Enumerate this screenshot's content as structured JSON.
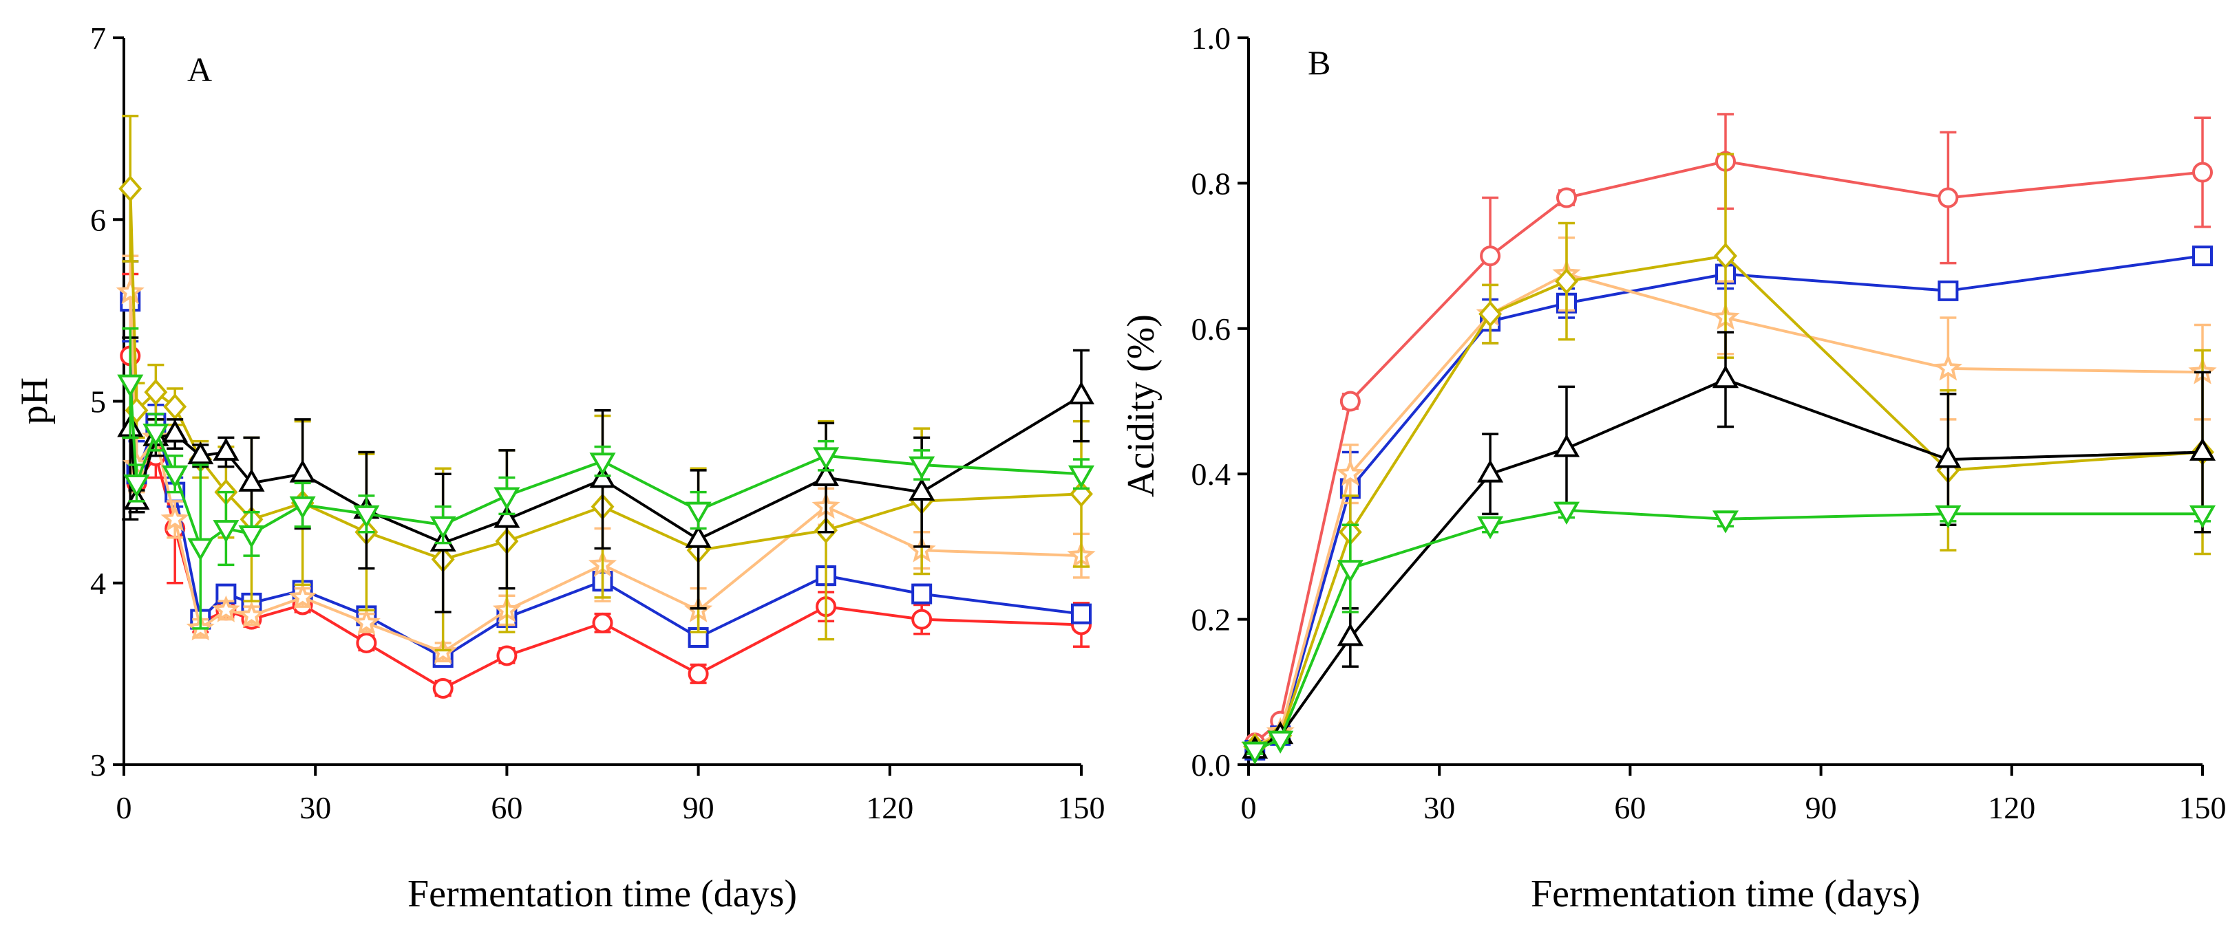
{
  "chart_data": [
    {
      "id": "A",
      "type": "line",
      "panel_label": "A",
      "xlabel": "Fermentation time (days)",
      "ylabel": "pH",
      "xlim": [
        0,
        150
      ],
      "ylim": [
        3,
        7
      ],
      "xticks": [
        0,
        30,
        60,
        90,
        120,
        150
      ],
      "yticks": [
        3,
        4,
        5,
        6,
        7
      ],
      "x": [
        1,
        2,
        5,
        8,
        12,
        16,
        20,
        28,
        38,
        50,
        60,
        75,
        90,
        110,
        125,
        150
      ],
      "series": [
        {
          "name": "circle-red",
          "marker": "circle",
          "color": "#ff2a2a",
          "values": [
            5.25,
            4.55,
            4.7,
            4.3,
            3.78,
            3.85,
            3.8,
            3.88,
            3.67,
            3.42,
            3.6,
            3.78,
            3.5,
            3.87,
            3.8,
            3.77
          ],
          "errors": [
            0.45,
            0.12,
            0.12,
            0.3,
            0.05,
            0.04,
            0.04,
            0.04,
            0.04,
            0.04,
            0.04,
            0.05,
            0.05,
            0.08,
            0.08,
            0.12
          ]
        },
        {
          "name": "square-blue",
          "marker": "square",
          "color": "#1a2fd0",
          "values": [
            5.55,
            4.6,
            4.88,
            4.5,
            3.8,
            3.94,
            3.89,
            3.96,
            3.82,
            3.59,
            3.81,
            4.01,
            3.7,
            4.04,
            3.94,
            3.83
          ],
          "errors": [
            0.22,
            0.18,
            0.1,
            0.08,
            0.04,
            0.04,
            0.04,
            0.04,
            0.04,
            0.04,
            0.04,
            0.05,
            0.05,
            0.05,
            0.05,
            0.05
          ]
        },
        {
          "name": "star-orange",
          "marker": "star",
          "color": "#ffbf80",
          "values": [
            5.6,
            4.65,
            4.8,
            4.35,
            3.75,
            3.85,
            3.82,
            3.92,
            3.78,
            3.62,
            3.85,
            4.1,
            3.85,
            4.42,
            4.18,
            4.15
          ],
          "errors": [
            0.2,
            0.15,
            0.1,
            0.1,
            0.05,
            0.05,
            0.05,
            0.05,
            0.05,
            0.05,
            0.08,
            0.2,
            0.12,
            0.1,
            0.1,
            0.12
          ]
        },
        {
          "name": "diamond-olive",
          "marker": "diamond",
          "color": "#c8b400",
          "values": [
            6.17,
            4.95,
            5.05,
            4.97,
            4.68,
            4.5,
            4.35,
            4.44,
            4.28,
            4.13,
            4.23,
            4.42,
            4.18,
            4.29,
            4.45,
            4.49
          ],
          "errors": [
            0.4,
            0.15,
            0.15,
            0.1,
            0.1,
            0.25,
            0.45,
            0.45,
            0.43,
            0.5,
            0.5,
            0.5,
            0.45,
            0.6,
            0.4,
            0.4
          ]
        },
        {
          "name": "triangle-up-black",
          "marker": "triangle-up",
          "color": "#000000",
          "values": [
            4.85,
            4.45,
            4.8,
            4.82,
            4.7,
            4.72,
            4.55,
            4.6,
            4.4,
            4.22,
            4.35,
            4.57,
            4.24,
            4.58,
            4.5,
            5.03
          ],
          "errors": [
            0.5,
            0.06,
            0.1,
            0.08,
            0.06,
            0.08,
            0.25,
            0.3,
            0.32,
            0.38,
            0.38,
            0.38,
            0.38,
            0.3,
            0.3,
            0.25
          ]
        },
        {
          "name": "triangle-down-green",
          "marker": "triangle-down",
          "color": "#22c81e",
          "values": [
            5.1,
            4.55,
            4.83,
            4.6,
            4.2,
            4.3,
            4.27,
            4.43,
            4.38,
            4.32,
            4.48,
            4.67,
            4.4,
            4.7,
            4.65,
            4.6
          ],
          "errors": [
            0.3,
            0.1,
            0.1,
            0.1,
            0.45,
            0.2,
            0.12,
            0.12,
            0.1,
            0.1,
            0.1,
            0.08,
            0.1,
            0.08,
            0.08,
            0.08
          ]
        }
      ]
    },
    {
      "id": "B",
      "type": "line",
      "panel_label": "B",
      "xlabel": "Fermentation time (days)",
      "ylabel": "Acidity (%)",
      "xlim": [
        0,
        150
      ],
      "ylim": [
        0.0,
        1.0
      ],
      "xticks": [
        0,
        30,
        60,
        90,
        120,
        150
      ],
      "yticks": [
        0.0,
        0.2,
        0.4,
        0.6,
        0.8,
        1.0
      ],
      "ytick_labels": [
        "0.0",
        "0.2",
        "0.4",
        "0.6",
        "0.8",
        "1.0"
      ],
      "x": [
        1,
        5,
        16,
        38,
        50,
        75,
        110,
        150
      ],
      "series": [
        {
          "name": "circle-red",
          "marker": "circle",
          "color": "#f25a5a",
          "values": [
            0.03,
            0.06,
            0.5,
            0.7,
            0.78,
            0.83,
            0.78,
            0.815
          ],
          "errors": [
            0.005,
            0.005,
            0.01,
            0.08,
            0.01,
            0.065,
            0.09,
            0.075
          ]
        },
        {
          "name": "square-blue",
          "marker": "square",
          "color": "#1a2fd0",
          "values": [
            0.02,
            0.04,
            0.38,
            0.61,
            0.635,
            0.675,
            0.652,
            0.7
          ],
          "errors": [
            0.005,
            0.005,
            0.05,
            0.03,
            0.02,
            0.02,
            0.01,
            0.01
          ]
        },
        {
          "name": "star-orange",
          "marker": "star",
          "color": "#ffbf80",
          "values": [
            0.025,
            0.045,
            0.4,
            0.62,
            0.675,
            0.615,
            0.545,
            0.54
          ],
          "errors": [
            0.005,
            0.005,
            0.04,
            0.04,
            0.05,
            0.05,
            0.07,
            0.065
          ]
        },
        {
          "name": "diamond-olive",
          "marker": "diamond",
          "color": "#c8b400",
          "values": [
            0.025,
            0.04,
            0.32,
            0.62,
            0.665,
            0.7,
            0.405,
            0.43
          ],
          "errors": [
            0.005,
            0.005,
            0.05,
            0.04,
            0.08,
            0.14,
            0.11,
            0.14
          ]
        },
        {
          "name": "triangle-up-black",
          "marker": "triangle-up",
          "color": "#000000",
          "values": [
            0.02,
            0.04,
            0.175,
            0.4,
            0.435,
            0.53,
            0.42,
            0.43
          ],
          "errors": [
            0.005,
            0.005,
            0.04,
            0.055,
            0.085,
            0.065,
            0.09,
            0.11
          ]
        },
        {
          "name": "triangle-down-green",
          "marker": "triangle-down",
          "color": "#22c81e",
          "values": [
            0.02,
            0.035,
            0.27,
            0.33,
            0.35,
            0.338,
            0.345,
            0.345
          ],
          "errors": [
            0.005,
            0.005,
            0.06,
            0.01,
            0.01,
            0.01,
            0.01,
            0.01
          ]
        }
      ]
    }
  ]
}
